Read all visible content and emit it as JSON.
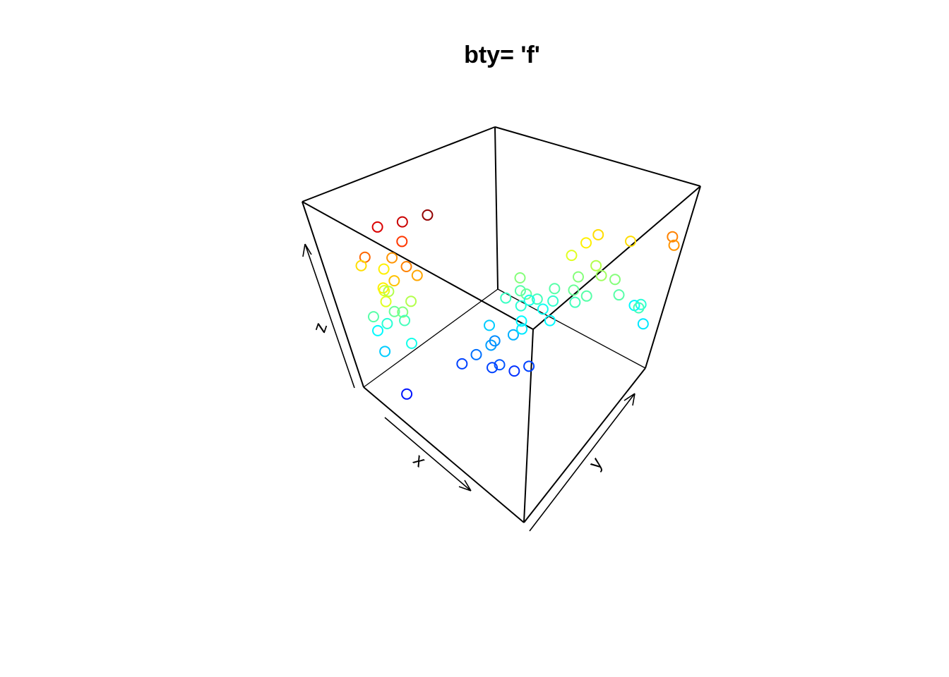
{
  "chart_data": {
    "type": "scatter3d",
    "title": "bty= 'f'",
    "xlabel": "x",
    "ylabel": "y",
    "zlabel": "z",
    "xlim": [
      0,
      1
    ],
    "ylim": [
      0,
      1
    ],
    "zlim": [
      0,
      1
    ],
    "colormap": "jet",
    "x": [
      0.15,
      0.18,
      0.12,
      0.2,
      0.1,
      0.22,
      0.16,
      0.14,
      0.2,
      0.25,
      0.12,
      0.18,
      0.08,
      0.22,
      0.15,
      0.1,
      0.2,
      0.25,
      0.17,
      0.22,
      0.3,
      0.05,
      0.28,
      0.14,
      0.35,
      0.4,
      0.45,
      0.38,
      0.42,
      0.5,
      0.55,
      0.3,
      0.2,
      0.45,
      0.35,
      0.45,
      0.5,
      0.42,
      0.48,
      0.52,
      0.4,
      0.55,
      0.47,
      0.44,
      0.5,
      0.58,
      0.53,
      0.38,
      0.6,
      0.65,
      0.55,
      0.62,
      0.7,
      0.58,
      0.68,
      0.75,
      0.6,
      0.65,
      0.9,
      0.85,
      0.92,
      0.95,
      0.8,
      0.95,
      0.98,
      0.75
    ],
    "y": [
      0.15,
      0.12,
      0.2,
      0.18,
      0.1,
      0.15,
      0.22,
      0.1,
      0.25,
      0.2,
      0.15,
      0.2,
      0.12,
      0.22,
      0.18,
      0.22,
      0.1,
      0.15,
      0.17,
      0.25,
      0.3,
      0.15,
      0.22,
      0.08,
      0.45,
      0.5,
      0.5,
      0.55,
      0.48,
      0.55,
      0.6,
      0.4,
      0.1,
      0.6,
      0.55,
      0.65,
      0.7,
      0.68,
      0.62,
      0.72,
      0.7,
      0.75,
      0.66,
      0.72,
      0.6,
      0.7,
      0.78,
      0.63,
      0.85,
      0.9,
      0.85,
      0.8,
      0.88,
      0.9,
      0.82,
      0.92,
      0.95,
      0.78,
      0.95,
      0.98,
      0.9,
      0.93,
      0.9,
      0.98,
      0.96,
      0.98
    ],
    "z": [
      0.55,
      0.6,
      0.5,
      0.45,
      0.4,
      0.65,
      0.7,
      0.75,
      0.8,
      0.72,
      0.35,
      0.38,
      0.3,
      0.5,
      0.42,
      0.6,
      0.55,
      0.33,
      0.9,
      0.92,
      0.98,
      0.62,
      0.68,
      0.25,
      0.15,
      0.2,
      0.12,
      0.18,
      0.1,
      0.08,
      0.1,
      0.1,
      0.05,
      0.22,
      0.25,
      0.35,
      0.38,
      0.4,
      0.3,
      0.32,
      0.45,
      0.36,
      0.42,
      0.33,
      0.28,
      0.3,
      0.4,
      0.37,
      0.45,
      0.5,
      0.55,
      0.42,
      0.48,
      0.6,
      0.4,
      0.45,
      0.62,
      0.38,
      0.35,
      0.3,
      0.38,
      0.28,
      0.4,
      0.72,
      0.7,
      0.62
    ]
  }
}
